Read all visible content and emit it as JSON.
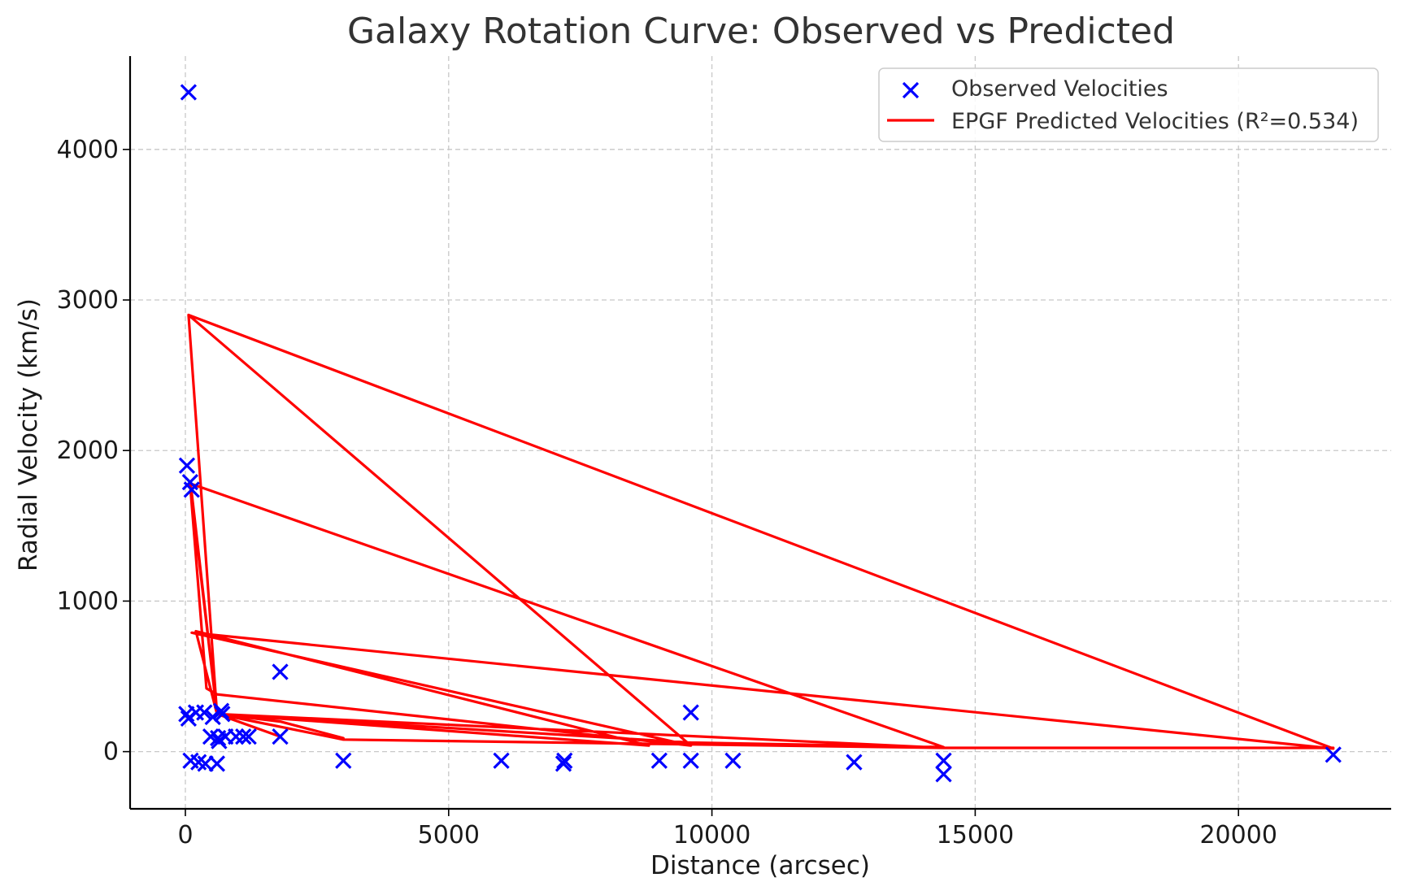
{
  "chart_data": {
    "type": "scatter",
    "title": "Galaxy Rotation Curve: Observed vs Predicted",
    "xlabel": "Distance (arcsec)",
    "ylabel": "Radial Velocity (km/s)",
    "xlim": [
      -1050,
      22900
    ],
    "ylim": [
      -380,
      4620
    ],
    "xticks": [
      0,
      5000,
      10000,
      15000,
      20000
    ],
    "xtick_labels": [
      "0",
      "5000",
      "10000",
      "15000",
      "20000"
    ],
    "yticks": [
      0,
      1000,
      2000,
      3000,
      4000
    ],
    "ytick_labels": [
      "0",
      "1000",
      "2000",
      "3000",
      "4000"
    ],
    "grid": true,
    "legend_position": "top-right",
    "colors": {
      "observed": "#0000ff",
      "predicted": "#ff0000"
    },
    "series": [
      {
        "name": "Observed Velocities",
        "kind": "scatter",
        "marker": "x",
        "points": [
          [
            60,
            4380
          ],
          [
            30,
            1900
          ],
          [
            90,
            1790
          ],
          [
            120,
            1740
          ],
          [
            20,
            250
          ],
          [
            60,
            220
          ],
          [
            200,
            260
          ],
          [
            360,
            260
          ],
          [
            520,
            230
          ],
          [
            700,
            250
          ],
          [
            680,
            270
          ],
          [
            480,
            100
          ],
          [
            620,
            90
          ],
          [
            640,
            70
          ],
          [
            760,
            100
          ],
          [
            960,
            100
          ],
          [
            1100,
            100
          ],
          [
            1200,
            100
          ],
          [
            1800,
            100
          ],
          [
            1800,
            530
          ],
          [
            9600,
            260
          ],
          [
            100,
            -60
          ],
          [
            250,
            -70
          ],
          [
            380,
            -80
          ],
          [
            600,
            -80
          ],
          [
            3000,
            -60
          ],
          [
            6000,
            -60
          ],
          [
            7200,
            -60
          ],
          [
            7180,
            -80
          ],
          [
            9000,
            -60
          ],
          [
            9600,
            -60
          ],
          [
            10400,
            -60
          ],
          [
            12700,
            -70
          ],
          [
            14400,
            -60
          ],
          [
            14400,
            -150
          ],
          [
            21800,
            -20
          ]
        ]
      },
      {
        "name": "EPGF Predicted Velocities (R²=0.534)",
        "kind": "line",
        "points": [
          [
            1800,
            100
          ],
          [
            600,
            250
          ],
          [
            60,
            2900
          ],
          [
            9600,
            40
          ],
          [
            120,
            790
          ],
          [
            21800,
            20
          ],
          [
            60,
            2900
          ],
          [
            9600,
            40
          ],
          [
            600,
            380
          ],
          [
            400,
            420
          ],
          [
            90,
            1780
          ],
          [
            600,
            250
          ],
          [
            3000,
            80
          ],
          [
            14400,
            25
          ],
          [
            21800,
            25
          ],
          [
            14400,
            25
          ],
          [
            600,
            250
          ],
          [
            9600,
            60
          ],
          [
            14400,
            30
          ],
          [
            100,
            1780
          ],
          [
            600,
            250
          ],
          [
            8800,
            40
          ],
          [
            200,
            800
          ],
          [
            600,
            250
          ],
          [
            1800,
            200
          ],
          [
            3000,
            90
          ]
        ]
      }
    ]
  }
}
